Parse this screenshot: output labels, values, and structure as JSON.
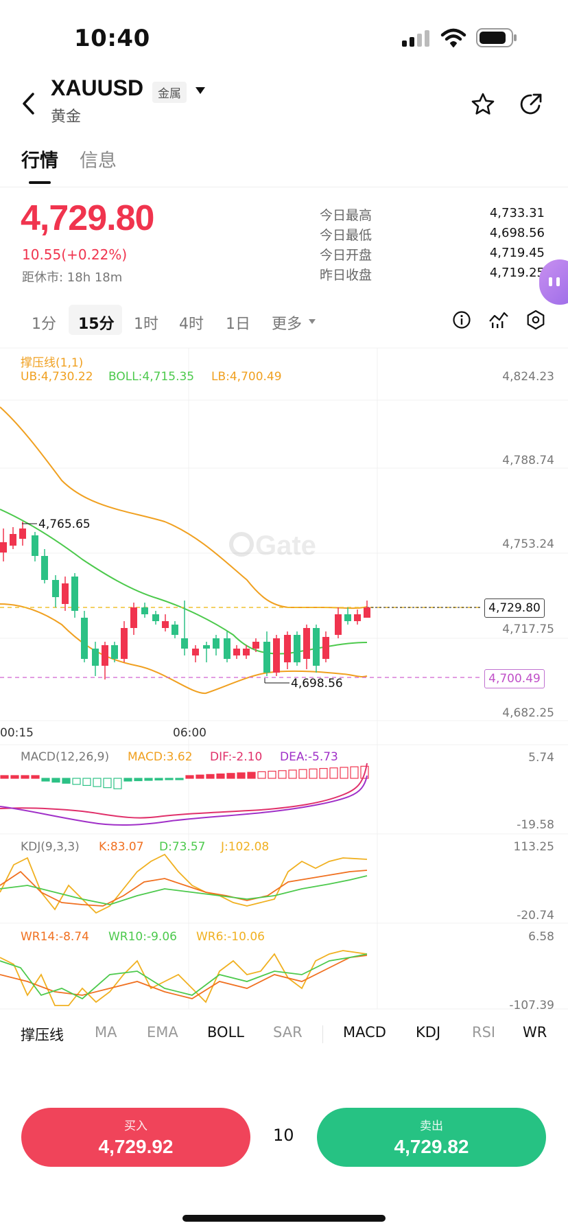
{
  "status": {
    "time": "10:40"
  },
  "header": {
    "symbol": "XAUUSD",
    "badge": "金属",
    "name": "黄金",
    "icons": {
      "back": "chevron-left-icon",
      "dropdown": "caret-down-icon",
      "favorite": "star-icon",
      "share": "share-icon"
    }
  },
  "tabs": [
    {
      "label": "行情",
      "active": true
    },
    {
      "label": "信息",
      "active": false
    }
  ],
  "quote": {
    "price": "4,729.80",
    "change": "10.55(+0.22%)",
    "close_timer": "距休市: 18h 18m",
    "stats": [
      {
        "label": "今日最高",
        "value": "4,733.31"
      },
      {
        "label": "今日最低",
        "value": "4,698.56"
      },
      {
        "label": "今日开盘",
        "value": "4,719.45"
      },
      {
        "label": "昨日收盘",
        "value": "4,719.25"
      }
    ]
  },
  "timeframes": [
    {
      "label": "1分",
      "active": false
    },
    {
      "label": "15分",
      "active": true
    },
    {
      "label": "1时",
      "active": false
    },
    {
      "label": "4时",
      "active": false
    },
    {
      "label": "1日",
      "active": false
    },
    {
      "label": "更多",
      "active": false
    }
  ],
  "chart_icons": [
    "info-icon",
    "indicator-icon",
    "settings-icon"
  ],
  "main_chart": {
    "title": "撑压线(1,1)",
    "legend": [
      {
        "text": "UB:4,730.22",
        "color": "#f0a020"
      },
      {
        "text": "BOLL:4,715.35",
        "color": "#4cc94c"
      },
      {
        "text": "LB:4,700.49",
        "color": "#f0a020"
      }
    ],
    "axis": [
      "4,824.23",
      "4,788.74",
      "4,753.24",
      "4,717.75",
      "4,682.25"
    ],
    "time_ticks": [
      "00:15",
      "06:00"
    ],
    "current_price_tag": "4,729.80",
    "lb_tag": "4,700.49",
    "high_marker": "4,765.65",
    "low_marker": "4,698.56",
    "watermark": "Gate"
  },
  "macd": {
    "legend": [
      {
        "text": "MACD(12,26,9)",
        "color": "#777777"
      },
      {
        "text": "MACD:3.62",
        "color": "#f0a020"
      },
      {
        "text": "DIF:-2.10",
        "color": "#e0306a"
      },
      {
        "text": "DEA:-5.73",
        "color": "#a030c8"
      }
    ],
    "axis": [
      "5.74",
      "-19.58"
    ]
  },
  "kdj": {
    "legend": [
      {
        "text": "KDJ(9,3,3)",
        "color": "#777777"
      },
      {
        "text": "K:83.07",
        "color": "#f07020"
      },
      {
        "text": "D:73.57",
        "color": "#4cc94c"
      },
      {
        "text": "J:102.08",
        "color": "#f0b020"
      }
    ],
    "axis": [
      "113.25",
      "-20.74"
    ]
  },
  "wr": {
    "legend": [
      {
        "text": "WR14:-8.74",
        "color": "#f07020"
      },
      {
        "text": "WR10:-9.06",
        "color": "#4cc94c"
      },
      {
        "text": "WR6:-10.06",
        "color": "#f0b020"
      }
    ],
    "axis": [
      "6.58",
      "-107.39"
    ]
  },
  "indicator_tabs": [
    {
      "label": "撑压线",
      "active": true
    },
    {
      "label": "MA",
      "active": false
    },
    {
      "label": "EMA",
      "active": false
    },
    {
      "label": "BOLL",
      "active": true
    },
    {
      "label": "SAR",
      "active": false
    },
    {
      "label": "MACD",
      "active": true
    },
    {
      "label": "KDJ",
      "active": true
    },
    {
      "label": "RSI",
      "active": false
    },
    {
      "label": "WR",
      "active": true
    }
  ],
  "trade": {
    "buy_label": "买入",
    "buy_price": "4,729.92",
    "quantity": "10",
    "sell_label": "卖出",
    "sell_price": "4,729.82"
  },
  "colors": {
    "up": "#f0344e",
    "down": "#2cc185",
    "accent_purple": "#b072e0"
  }
}
